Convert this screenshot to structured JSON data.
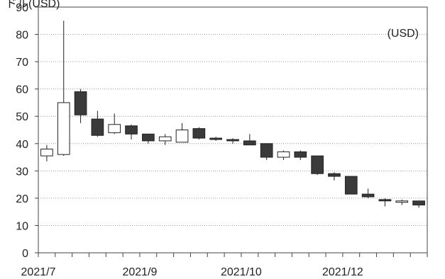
{
  "chart_data": {
    "type": "candlestick",
    "title": "",
    "unit_label": "(USD)",
    "xlabel": "",
    "ylabel": "",
    "ylim": [
      0,
      90
    ],
    "yticks": [
      "0",
      "10",
      "20",
      "30",
      "40",
      "50",
      "60",
      "70",
      "80",
      "90"
    ],
    "grid": true,
    "xtick_labels": [
      {
        "label": "2021/7",
        "after_candle": 0
      },
      {
        "label": "2021/9",
        "after_candle": 6
      },
      {
        "label": "2021/10",
        "after_candle": 12
      },
      {
        "label": "2021/12",
        "after_candle": 18
      }
    ],
    "candles": [
      {
        "open": 35.5,
        "high": 39.5,
        "low": 33.5,
        "close": 38.0
      },
      {
        "open": 36.0,
        "high": 85.0,
        "low": 35.5,
        "close": 55.0
      },
      {
        "open": 59.0,
        "high": 60.0,
        "low": 47.5,
        "close": 50.5
      },
      {
        "open": 49.0,
        "high": 52.0,
        "low": 42.5,
        "close": 43.0
      },
      {
        "open": 44.0,
        "high": 51.0,
        "low": 43.5,
        "close": 47.0
      },
      {
        "open": 46.5,
        "high": 47.0,
        "low": 41.5,
        "close": 43.5
      },
      {
        "open": 43.5,
        "high": 43.5,
        "low": 40.0,
        "close": 41.0
      },
      {
        "open": 41.0,
        "high": 43.5,
        "low": 39.5,
        "close": 42.5
      },
      {
        "open": 40.5,
        "high": 47.5,
        "low": 40.5,
        "close": 45.0
      },
      {
        "open": 45.5,
        "high": 46.0,
        "low": 41.5,
        "close": 42.0
      },
      {
        "open": 42.0,
        "high": 42.5,
        "low": 41.0,
        "close": 41.5
      },
      {
        "open": 41.5,
        "high": 42.0,
        "low": 40.0,
        "close": 41.0
      },
      {
        "open": 41.0,
        "high": 43.5,
        "low": 39.5,
        "close": 39.5
      },
      {
        "open": 40.0,
        "high": 40.0,
        "low": 34.0,
        "close": 35.0
      },
      {
        "open": 35.0,
        "high": 37.5,
        "low": 34.0,
        "close": 37.0
      },
      {
        "open": 37.0,
        "high": 37.5,
        "low": 34.0,
        "close": 35.0
      },
      {
        "open": 35.5,
        "high": 35.5,
        "low": 28.5,
        "close": 29.0
      },
      {
        "open": 29.0,
        "high": 29.5,
        "low": 26.5,
        "close": 28.0
      },
      {
        "open": 28.0,
        "high": 28.0,
        "low": 21.5,
        "close": 21.5
      },
      {
        "open": 21.5,
        "high": 23.5,
        "low": 20.0,
        "close": 20.5
      },
      {
        "open": 19.5,
        "high": 20.0,
        "low": 17.0,
        "close": 19.0
      },
      {
        "open": 18.5,
        "high": 19.5,
        "low": 17.5,
        "close": 19.0
      },
      {
        "open": 19.0,
        "high": 19.0,
        "low": 16.5,
        "close": 17.5
      }
    ],
    "colors": {
      "up_fill": "#ffffff",
      "down_fill": "#3a3a3a",
      "outline": "#222222",
      "grid": "#9a9a9a",
      "axis": "#444444",
      "text": "#222222"
    }
  }
}
